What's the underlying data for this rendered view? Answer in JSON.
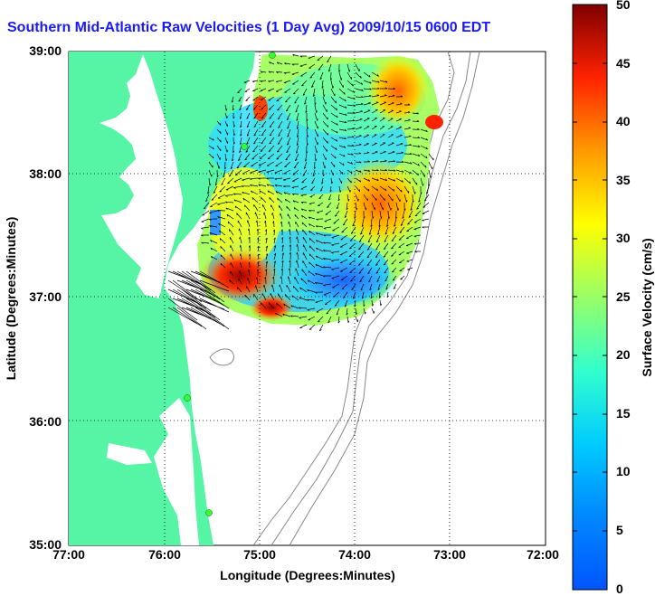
{
  "title": "Southern Mid-Atlantic Raw Velocities (1 Day Avg) 2009/10/15 0600 EDT",
  "x_axis": {
    "label": "Longitude (Degrees:Minutes)",
    "ticks": [
      "77:00",
      "76:00",
      "75:00",
      "74:00",
      "73:00",
      "72:00"
    ]
  },
  "y_axis": {
    "label": "Latitude (Degrees:Minutes)",
    "ticks": [
      "39:00",
      "38:00",
      "37:00",
      "36:00",
      "35:00"
    ]
  },
  "colorbar": {
    "label": "Surface Velocity (cm/s)",
    "ticks": [
      "50",
      "45",
      "40",
      "35",
      "30",
      "25",
      "20",
      "15",
      "10",
      "5",
      "0"
    ],
    "min": 0,
    "max": 50
  },
  "colors": {
    "land": "#55f5a5",
    "water": "#ffffff",
    "title": "#1a1aff",
    "station": "#33ff33"
  }
}
